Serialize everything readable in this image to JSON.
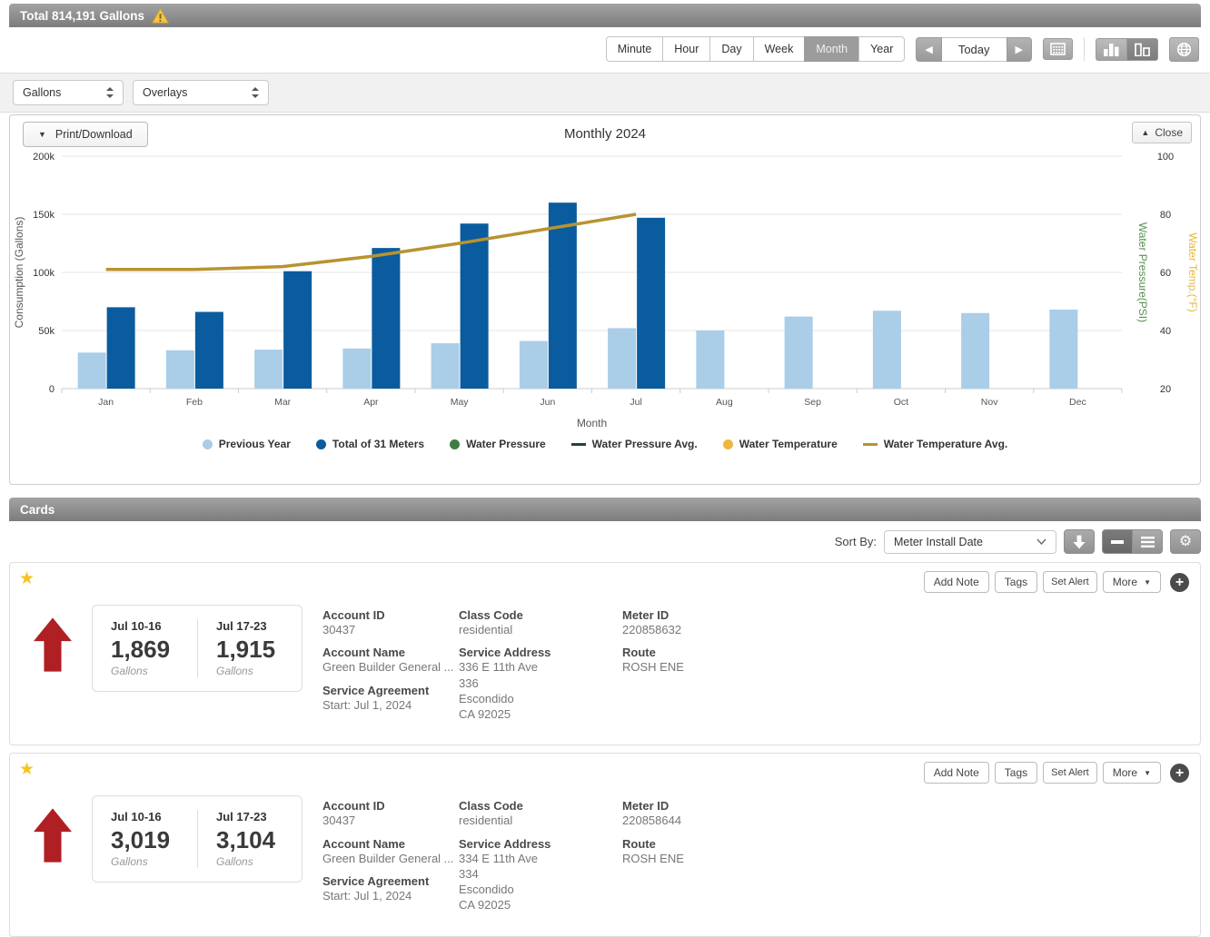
{
  "header": {
    "title": "Total 814,191 Gallons"
  },
  "icons": {
    "caret_down": "▼",
    "caret_up": "▲",
    "arrow_left": "◀",
    "arrow_right": "▶",
    "star": "★",
    "gear": "⚙",
    "plus": "+",
    "more_caret": "▼"
  },
  "toolbar": {
    "range_buttons": [
      {
        "label": "Minute",
        "active": false
      },
      {
        "label": "Hour",
        "active": false
      },
      {
        "label": "Day",
        "active": false
      },
      {
        "label": "Week",
        "active": false
      },
      {
        "label": "Month",
        "active": true
      },
      {
        "label": "Year",
        "active": false
      }
    ],
    "today_label": "Today"
  },
  "filters": {
    "unit_value": "Gallons",
    "overlay_value": "Overlays"
  },
  "chart_panel": {
    "print_label": "Print/Download",
    "close_label": "Close"
  },
  "chart_data": {
    "type": "bar",
    "title": "Monthly 2024",
    "xlabel": "Month",
    "categories": [
      "Jan",
      "Feb",
      "Mar",
      "Apr",
      "May",
      "Jun",
      "Jul",
      "Aug",
      "Sep",
      "Oct",
      "Nov",
      "Dec"
    ],
    "left_axis": {
      "label": "Consumption (Gallons)",
      "min": 0,
      "max": 200000,
      "tick_labels": [
        "0",
        "50k",
        "100k",
        "150k",
        "200k"
      ]
    },
    "right_axis": {
      "pressure_label": "Water Pressure(PSI)",
      "temp_label": "Water Temp.(°F)",
      "min": 20,
      "max": 100,
      "tick_labels": [
        "20",
        "40",
        "60",
        "80",
        "100"
      ]
    },
    "series": [
      {
        "name": "Previous Year",
        "type": "bar",
        "marker": "circle",
        "axis": "left",
        "color": "#aacde8",
        "values": [
          31000,
          33000,
          33500,
          34500,
          39000,
          41000,
          52000,
          50000,
          62000,
          67000,
          65000,
          68000
        ]
      },
      {
        "name": "Total of 31 Meters",
        "type": "bar",
        "marker": "circle",
        "axis": "left",
        "color": "#0a5c9e",
        "values": [
          70000,
          66000,
          101000,
          121000,
          142000,
          160000,
          147000,
          null,
          null,
          null,
          null,
          null
        ]
      },
      {
        "name": "Water Pressure",
        "type": "scatter",
        "marker": "circle",
        "axis": "right",
        "color": "#3e7d44",
        "values": []
      },
      {
        "name": "Water Pressure Avg.",
        "type": "line",
        "marker": "line",
        "axis": "right",
        "color": "#25413a",
        "values": []
      },
      {
        "name": "Water Temperature",
        "type": "scatter",
        "marker": "circle",
        "axis": "right",
        "color": "#efb73e",
        "values": []
      },
      {
        "name": "Water Temperature Avg.",
        "type": "line",
        "marker": "line",
        "axis": "right",
        "color": "#b8932f",
        "values": [
          61,
          61,
          62,
          65.5,
          70,
          75,
          80,
          null,
          null,
          null,
          null,
          null
        ]
      }
    ],
    "legend_position": "bottom",
    "grid": true
  },
  "cards_section": {
    "title": "Cards",
    "sort_label": "Sort By:",
    "sort_value": "Meter Install Date",
    "cards": [
      {
        "actions": {
          "add_note": "Add Note",
          "tags": "Tags",
          "set_alert": "Set Alert",
          "more": "More"
        },
        "periods": [
          {
            "label": "Jul 10-16",
            "value": "1,869",
            "unit": "Gallons"
          },
          {
            "label": "Jul 17-23",
            "value": "1,915",
            "unit": "Gallons"
          }
        ],
        "account_id_label": "Account ID",
        "account_id": "30437",
        "account_name_label": "Account Name",
        "account_name": "Green Builder General ...",
        "service_agreement_label": "Service Agreement",
        "service_agreement": "Start: Jul 1, 2024",
        "class_code_label": "Class Code",
        "class_code": "residential",
        "service_address_label": "Service Address",
        "address_line1": "336 E 11th Ave",
        "address_line2": "336",
        "address_line3": "Escondido",
        "address_line4": "CA 92025",
        "meter_id_label": "Meter ID",
        "meter_id": "220858632",
        "route_label": "Route",
        "route": "ROSH ENE"
      },
      {
        "actions": {
          "add_note": "Add Note",
          "tags": "Tags",
          "set_alert": "Set Alert",
          "more": "More"
        },
        "periods": [
          {
            "label": "Jul 10-16",
            "value": "3,019",
            "unit": "Gallons"
          },
          {
            "label": "Jul 17-23",
            "value": "3,104",
            "unit": "Gallons"
          }
        ],
        "account_id_label": "Account ID",
        "account_id": "30437",
        "account_name_label": "Account Name",
        "account_name": "Green Builder General ...",
        "service_agreement_label": "Service Agreement",
        "service_agreement": "Start: Jul 1, 2024",
        "class_code_label": "Class Code",
        "class_code": "residential",
        "service_address_label": "Service Address",
        "address_line1": "334 E 11th Ave",
        "address_line2": "334",
        "address_line3": "Escondido",
        "address_line4": "CA 92025",
        "meter_id_label": "Meter ID",
        "meter_id": "220858644",
        "route_label": "Route",
        "route": "ROSH ENE"
      }
    ]
  }
}
